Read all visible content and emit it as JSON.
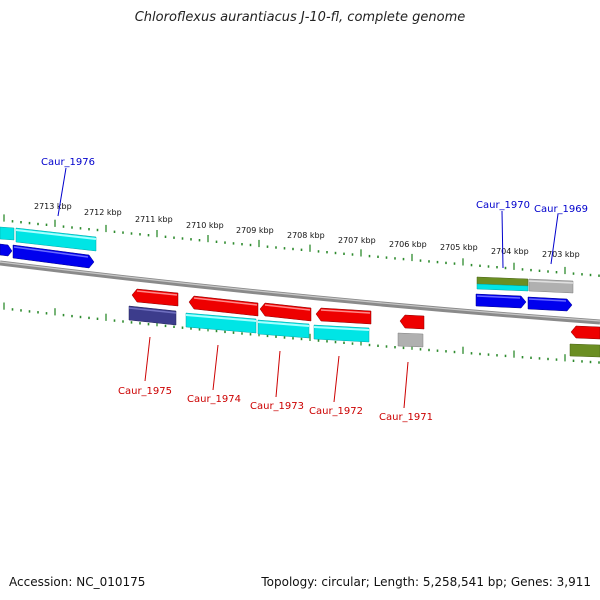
{
  "title": "Chloroflexus aurantiacus J-10-fl, complete genome",
  "footer": {
    "accession": "Accession: NC_010175",
    "summary": "Topology: circular; Length: 5,258,541 bp; Genes: 3,911"
  },
  "colors": {
    "backbone": "#8a8a8a",
    "ticks": "#2e8b2e",
    "forward_label": "#0000cc",
    "reverse_label": "#cc0000",
    "blue_gene": "#0000ee",
    "cyan_gene": "#00e5e5",
    "red_gene": "#ee0000",
    "grey_gene": "#b0b0b0",
    "navy_gene": "#3c3c8c",
    "olive_gene": "#6b8e23"
  },
  "kbp_labels": [
    "2713 kbp",
    "2712 kbp",
    "2711 kbp",
    "2710 kbp",
    "2709 kbp",
    "2708 kbp",
    "2707 kbp",
    "2706 kbp",
    "2705 kbp",
    "2704 kbp",
    "2703 kbp"
  ],
  "gene_labels": {
    "forward": [
      "Caur_1976",
      "Caur_1970",
      "Caur_1969"
    ],
    "reverse": [
      "Caur_1975",
      "Caur_1974",
      "Caur_1973",
      "Caur_1972",
      "Caur_1971"
    ]
  }
}
